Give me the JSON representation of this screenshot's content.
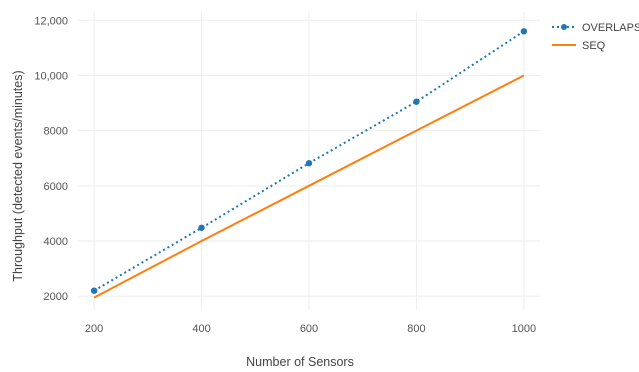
{
  "chart_data": {
    "type": "line",
    "title": "",
    "xlabel": "Number of Sensors",
    "ylabel": "Throughput (detected events/minutes)",
    "x": [
      200,
      400,
      600,
      800,
      1000
    ],
    "x_ticks": [
      200,
      400,
      600,
      800,
      1000
    ],
    "x_tick_labels": [
      "200",
      "400",
      "600",
      "800",
      "1000"
    ],
    "xlim": [
      170,
      1030
    ],
    "y_ticks": [
      2000,
      4000,
      6000,
      8000,
      10000,
      12000
    ],
    "y_tick_labels": [
      "2000",
      "4000",
      "6000",
      "8000",
      "10,000",
      "12,000"
    ],
    "ylim": [
      1500,
      12300
    ],
    "grid": true,
    "legend_position": "top-right",
    "series": [
      {
        "name": "OVERLAPS",
        "values": [
          2200,
          4480,
          6820,
          9050,
          11600
        ],
        "color": "#1f77b4",
        "style": "dotted-with-markers"
      },
      {
        "name": "SEQ",
        "values": [
          1950,
          4000,
          6000,
          8000,
          10000
        ],
        "color": "#ff7f0e",
        "style": "solid"
      }
    ]
  }
}
